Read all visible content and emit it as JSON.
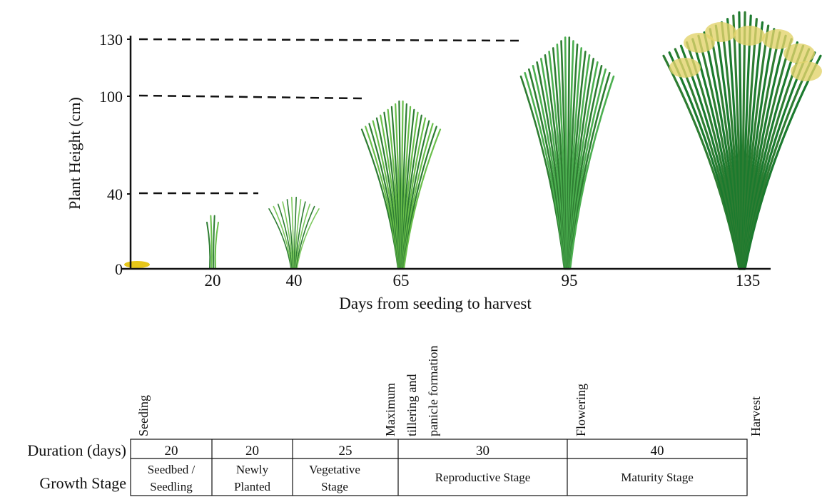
{
  "y_axis": {
    "label": "Plant Height (cm)",
    "ticks": [
      130,
      100,
      40,
      0
    ]
  },
  "x_axis": {
    "label": "Days from seeding to harvest",
    "ticks": [
      20,
      40,
      65,
      95,
      135
    ]
  },
  "events": [
    [
      "Seeding"
    ],
    [
      "Maximum",
      "tillering and",
      "panicle formation"
    ],
    [
      "Flowering"
    ],
    [
      "Harvest"
    ]
  ],
  "table": {
    "row_headers": [
      "Duration (days)",
      "Growth Stage"
    ],
    "durations": [
      20,
      20,
      25,
      30,
      40
    ],
    "stages": [
      [
        "Seedbed /",
        "Seedling"
      ],
      [
        "Newly",
        "Planted"
      ],
      [
        "Vegetative",
        "Stage"
      ],
      [
        "Reproductive Stage"
      ],
      [
        "Maturity Stage"
      ]
    ]
  }
}
